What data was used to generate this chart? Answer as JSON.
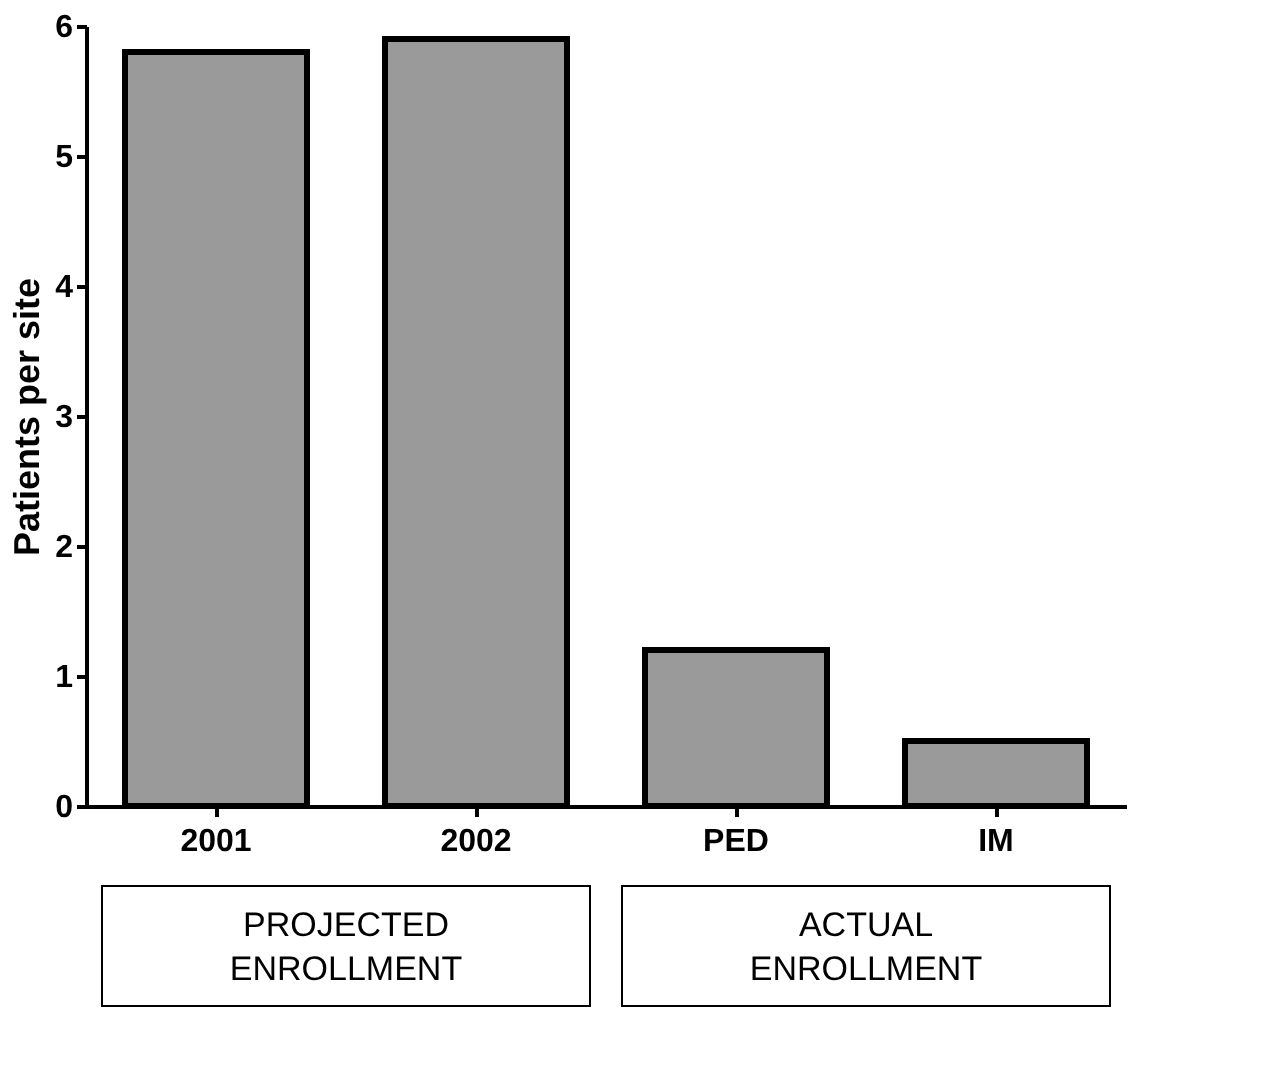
{
  "chart_data": {
    "type": "bar",
    "ylabel": "Patients per site",
    "categories": [
      "2001",
      "2002",
      "PED",
      "IM"
    ],
    "values": [
      5.8,
      5.9,
      1.2,
      0.5
    ],
    "color": "#9a9a9a",
    "ylim": [
      0,
      6
    ],
    "yticks": [
      0,
      1,
      2,
      3,
      4,
      5,
      6
    ],
    "grid": false,
    "annotations": [
      "PROJECTED ENROLLMENT",
      "ACTUAL ENROLLMENT"
    ]
  }
}
